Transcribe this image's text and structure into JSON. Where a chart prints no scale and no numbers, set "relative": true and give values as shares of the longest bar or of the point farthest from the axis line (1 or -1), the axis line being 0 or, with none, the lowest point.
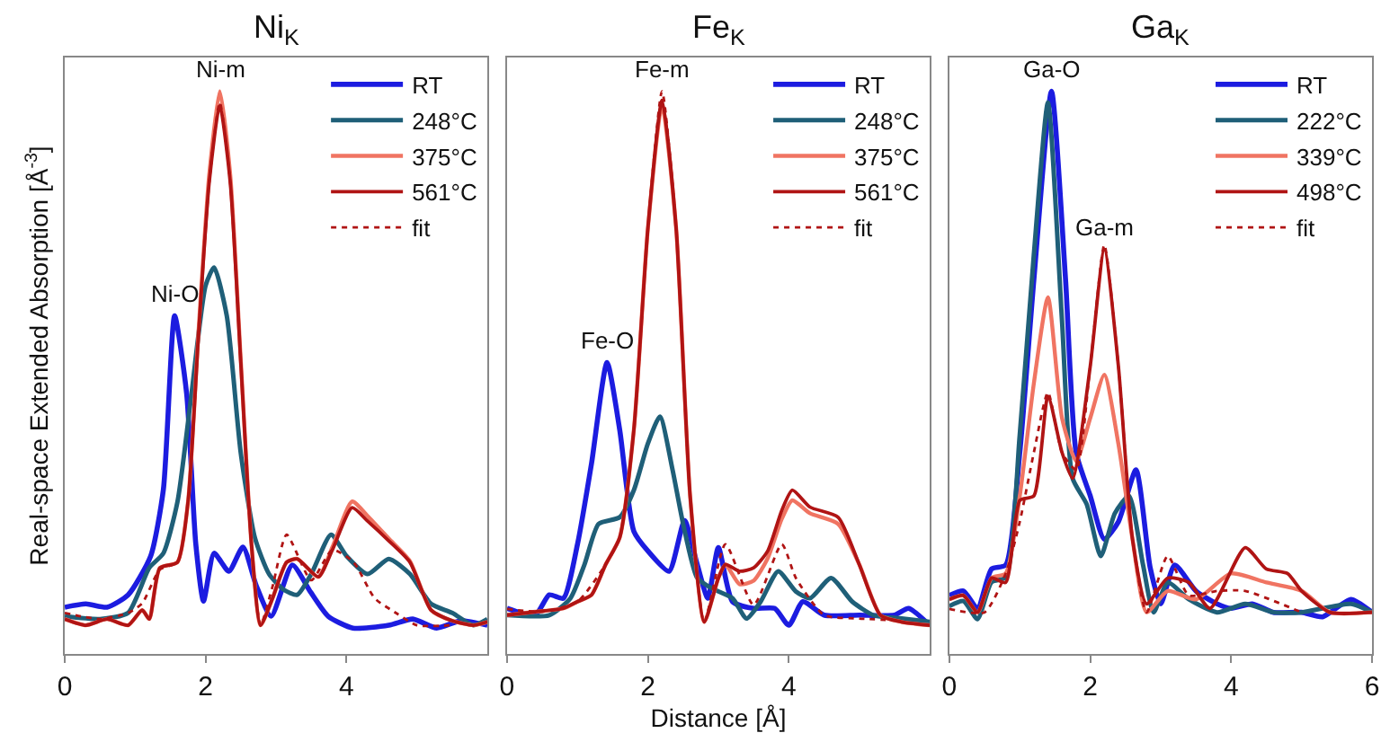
{
  "chart_data": [
    {
      "type": "line",
      "title": "Ni$_{K}$",
      "ylabel": "Real-space Extended Absorption [Å$^{-3}$]",
      "relative": true,
      "xlim": [
        0,
        6
      ],
      "xticks": [
        0,
        2,
        4
      ],
      "legend": "top right",
      "tick_labels": "x",
      "grid": false,
      "annotations": [
        {
          "text": "Ni-O",
          "x": 1.56,
          "y": 0.6
        },
        {
          "text": "Ni-m",
          "x": 2.2,
          "y": 1.0
        }
      ],
      "series": [
        {
          "name": "RT",
          "color": "#1c1ce0",
          "x": [
            0,
            0.3,
            0.6,
            0.9,
            1.22,
            1.4,
            1.56,
            1.73,
            1.86,
            1.97,
            2.12,
            2.33,
            2.53,
            2.72,
            2.93,
            3.23,
            3.49,
            3.74,
            4.09,
            4.6,
            4.94,
            5.28,
            5.62,
            6.0
          ],
          "values": [
            0.083,
            0.089,
            0.083,
            0.105,
            0.174,
            0.292,
            0.601,
            0.463,
            0.196,
            0.094,
            0.179,
            0.147,
            0.19,
            0.121,
            0.067,
            0.158,
            0.11,
            0.067,
            0.046,
            0.051,
            0.062,
            0.046,
            0.059,
            0.051
          ]
        },
        {
          "name": "248°C",
          "color": "#1f5f78",
          "x": [
            0,
            0.5,
            0.9,
            1.2,
            1.4,
            1.6,
            1.8,
            2.0,
            2.12,
            2.3,
            2.5,
            2.7,
            2.9,
            3.1,
            3.3,
            3.5,
            3.78,
            4.0,
            4.3,
            4.6,
            4.9,
            5.2,
            5.5,
            5.8,
            6.0
          ],
          "values": [
            0.067,
            0.062,
            0.073,
            0.153,
            0.179,
            0.27,
            0.463,
            0.655,
            0.687,
            0.601,
            0.356,
            0.206,
            0.142,
            0.115,
            0.105,
            0.142,
            0.212,
            0.174,
            0.142,
            0.169,
            0.142,
            0.089,
            0.073,
            0.051,
            0.062
          ]
        },
        {
          "name": "375°C",
          "color": "#f07462",
          "x": [
            0,
            0.3,
            0.6,
            0.9,
            1.1,
            1.2,
            1.35,
            1.6,
            1.75,
            1.9,
            2.05,
            2.2,
            2.35,
            2.5,
            2.65,
            2.78,
            2.95,
            3.15,
            3.3,
            3.6,
            3.8,
            4.08,
            4.3,
            4.6,
            4.9,
            5.2,
            5.5,
            5.8,
            6.0
          ],
          "values": [
            0.062,
            0.051,
            0.062,
            0.051,
            0.078,
            0.062,
            0.153,
            0.163,
            0.27,
            0.575,
            0.85,
            1.0,
            0.85,
            0.52,
            0.196,
            0.051,
            0.099,
            0.163,
            0.169,
            0.137,
            0.19,
            0.271,
            0.245,
            0.205,
            0.165,
            0.078,
            0.059,
            0.051,
            0.057
          ]
        },
        {
          "name": "561°C",
          "color": "#b01414",
          "x": [
            0,
            0.3,
            0.6,
            0.9,
            1.1,
            1.2,
            1.35,
            1.6,
            1.75,
            1.9,
            2.05,
            2.2,
            2.35,
            2.5,
            2.65,
            2.78,
            2.95,
            3.15,
            3.3,
            3.6,
            3.8,
            4.08,
            4.3,
            4.6,
            4.9,
            5.2,
            5.5,
            5.8,
            6.0
          ],
          "values": [
            0.062,
            0.051,
            0.062,
            0.051,
            0.078,
            0.062,
            0.153,
            0.163,
            0.27,
            0.569,
            0.837,
            0.975,
            0.837,
            0.516,
            0.196,
            0.051,
            0.099,
            0.163,
            0.169,
            0.137,
            0.185,
            0.26,
            0.236,
            0.201,
            0.163,
            0.078,
            0.059,
            0.051,
            0.057
          ]
        },
        {
          "name": "fit",
          "color": "#b01414",
          "line_style": "dotted",
          "x": [
            0,
            0.5,
            0.9,
            1.1,
            1.35,
            1.6,
            1.75,
            1.9,
            2.05,
            2.2,
            2.35,
            2.5,
            2.65,
            2.78,
            2.95,
            3.15,
            3.5,
            3.8,
            4.1,
            4.4,
            4.7,
            5.0,
            5.5
          ],
          "values": [
            0.073,
            0.062,
            0.073,
            0.09,
            0.15,
            0.163,
            0.27,
            0.569,
            0.837,
            0.98,
            0.837,
            0.516,
            0.196,
            0.051,
            0.12,
            0.212,
            0.131,
            0.185,
            0.163,
            0.099,
            0.073,
            0.051,
            0.051
          ]
        }
      ]
    },
    {
      "type": "line",
      "title": "Fe$_{K}$",
      "xlabel": "Distance [Å]",
      "relative": true,
      "xlim": [
        0,
        6
      ],
      "xticks": [
        0,
        2,
        4
      ],
      "legend": "top right",
      "tick_labels": "x",
      "grid": false,
      "annotations": [
        {
          "text": "Fe-O",
          "x": 1.42,
          "y": 0.518
        },
        {
          "text": "Fe-m",
          "x": 2.2,
          "y": 1.0
        }
      ],
      "series": [
        {
          "name": "RT",
          "color": "#1c1ce0",
          "x": [
            0,
            0.4,
            0.6,
            0.8,
            1.0,
            1.2,
            1.42,
            1.6,
            1.8,
            2.0,
            2.3,
            2.52,
            2.7,
            2.85,
            3.0,
            3.2,
            3.5,
            3.8,
            4.0,
            4.2,
            4.5,
            5.0,
            5.5,
            5.7,
            6.0
          ],
          "values": [
            0.081,
            0.069,
            0.105,
            0.099,
            0.195,
            0.339,
            0.518,
            0.398,
            0.218,
            0.183,
            0.147,
            0.237,
            0.159,
            0.099,
            0.189,
            0.093,
            0.081,
            0.081,
            0.051,
            0.093,
            0.069,
            0.069,
            0.069,
            0.081,
            0.051
          ]
        },
        {
          "name": "248°C",
          "color": "#1f5f78",
          "x": [
            0,
            0.6,
            0.9,
            1.1,
            1.3,
            1.6,
            1.8,
            2.0,
            2.17,
            2.35,
            2.5,
            2.7,
            2.9,
            3.2,
            3.4,
            3.6,
            3.85,
            4.1,
            4.3,
            4.6,
            4.9,
            5.2,
            5.6,
            6.0
          ],
          "values": [
            0.069,
            0.069,
            0.099,
            0.159,
            0.231,
            0.243,
            0.291,
            0.374,
            0.422,
            0.327,
            0.231,
            0.135,
            0.117,
            0.099,
            0.063,
            0.093,
            0.147,
            0.111,
            0.099,
            0.135,
            0.093,
            0.069,
            0.063,
            0.057
          ]
        },
        {
          "name": "375°C",
          "color": "#f07462",
          "x": [
            0,
            0.4,
            0.8,
            1.0,
            1.2,
            1.4,
            1.6,
            1.8,
            2.0,
            2.2,
            2.4,
            2.6,
            2.8,
            3.0,
            3.1,
            3.3,
            3.5,
            3.7,
            3.9,
            4.05,
            4.3,
            4.7,
            5.0,
            5.3,
            5.6,
            6.0
          ],
          "values": [
            0.069,
            0.075,
            0.081,
            0.093,
            0.105,
            0.159,
            0.207,
            0.398,
            0.757,
            0.975,
            0.757,
            0.279,
            0.057,
            0.135,
            0.159,
            0.124,
            0.13,
            0.17,
            0.24,
            0.273,
            0.25,
            0.231,
            0.159,
            0.069,
            0.057,
            0.051
          ]
        },
        {
          "name": "561°C",
          "color": "#b01414",
          "x": [
            0,
            0.4,
            0.8,
            1.0,
            1.2,
            1.4,
            1.6,
            1.8,
            2.0,
            2.2,
            2.4,
            2.6,
            2.8,
            3.0,
            3.1,
            3.3,
            3.5,
            3.7,
            3.9,
            4.05,
            4.3,
            4.7,
            5.0,
            5.3,
            5.6,
            6.0
          ],
          "values": [
            0.069,
            0.075,
            0.081,
            0.093,
            0.105,
            0.159,
            0.207,
            0.398,
            0.757,
            0.984,
            0.757,
            0.279,
            0.057,
            0.135,
            0.159,
            0.147,
            0.153,
            0.183,
            0.255,
            0.291,
            0.261,
            0.243,
            0.159,
            0.069,
            0.057,
            0.051
          ]
        },
        {
          "name": "fit",
          "color": "#b01414",
          "line_style": "dotted",
          "x": [
            0,
            0.5,
            1.0,
            1.4,
            1.6,
            1.8,
            2.0,
            2.2,
            2.4,
            2.6,
            2.8,
            3.1,
            3.5,
            3.9,
            4.1,
            4.5,
            5.0,
            5.5
          ],
          "values": [
            0.08,
            0.075,
            0.093,
            0.159,
            0.207,
            0.398,
            0.757,
            1.0,
            0.757,
            0.279,
            0.057,
            0.195,
            0.087,
            0.195,
            0.135,
            0.069,
            0.063,
            0.06
          ]
        }
      ]
    },
    {
      "type": "line",
      "title": "Ga$_{K}$",
      "relative": true,
      "xlim": [
        0,
        6
      ],
      "xticks": [
        0,
        2,
        4,
        6
      ],
      "legend": "top right",
      "tick_labels": "x",
      "grid": false,
      "annotations": [
        {
          "text": "Ga-O",
          "x": 1.45,
          "y": 1.0
        },
        {
          "text": "Ga-m",
          "x": 2.2,
          "y": 0.719
        }
      ],
      "series": [
        {
          "name": "RT",
          "color": "#1c1ce0",
          "x": [
            0,
            0.2,
            0.4,
            0.6,
            0.8,
            1.0,
            1.2,
            1.45,
            1.65,
            1.8,
            2.0,
            2.2,
            2.4,
            2.65,
            2.85,
            3.0,
            3.2,
            3.5,
            3.8,
            4.0,
            4.3,
            4.6,
            5.0,
            5.3,
            5.7,
            6.0
          ],
          "values": [
            0.104,
            0.112,
            0.081,
            0.151,
            0.158,
            0.358,
            0.665,
            1.0,
            0.665,
            0.358,
            0.281,
            0.204,
            0.235,
            0.327,
            0.154,
            0.089,
            0.158,
            0.112,
            0.089,
            0.081,
            0.089,
            0.074,
            0.074,
            0.066,
            0.097,
            0.074
          ]
        },
        {
          "name": "222°C",
          "color": "#1f5f78",
          "x": [
            0,
            0.2,
            0.4,
            0.6,
            0.8,
            1.0,
            1.2,
            1.4,
            1.6,
            1.75,
            1.95,
            2.15,
            2.35,
            2.55,
            2.75,
            2.9,
            3.1,
            3.4,
            3.8,
            4.2,
            4.6,
            5.0,
            5.7,
            6.0
          ],
          "values": [
            0.085,
            0.094,
            0.062,
            0.128,
            0.136,
            0.39,
            0.71,
            0.98,
            0.591,
            0.312,
            0.266,
            0.174,
            0.25,
            0.281,
            0.158,
            0.074,
            0.127,
            0.097,
            0.074,
            0.089,
            0.074,
            0.074,
            0.089,
            0.074
          ]
        },
        {
          "name": "339°C",
          "color": "#f07462",
          "x": [
            0,
            0.2,
            0.4,
            0.6,
            0.8,
            1.0,
            1.2,
            1.4,
            1.6,
            1.8,
            2.0,
            2.2,
            2.4,
            2.6,
            2.8,
            3.1,
            3.5,
            4.0,
            4.5,
            5.0,
            5.4,
            6.0
          ],
          "values": [
            0.097,
            0.104,
            0.074,
            0.135,
            0.143,
            0.281,
            0.481,
            0.634,
            0.419,
            0.343,
            0.419,
            0.496,
            0.373,
            0.204,
            0.074,
            0.112,
            0.097,
            0.143,
            0.127,
            0.112,
            0.074,
            0.074
          ]
        },
        {
          "name": "498°C",
          "color": "#b01414",
          "x": [
            0,
            0.2,
            0.4,
            0.6,
            0.8,
            1.0,
            1.2,
            1.4,
            1.6,
            1.75,
            2.0,
            2.2,
            2.4,
            2.6,
            2.8,
            3.1,
            3.4,
            3.7,
            4.2,
            4.5,
            4.8,
            5.0,
            5.4,
            6.0
          ],
          "values": [
            0.097,
            0.104,
            0.074,
            0.135,
            0.127,
            0.273,
            0.281,
            0.458,
            0.358,
            0.312,
            0.511,
            0.719,
            0.511,
            0.204,
            0.089,
            0.135,
            0.127,
            0.081,
            0.189,
            0.151,
            0.143,
            0.112,
            0.074,
            0.074
          ]
        },
        {
          "name": "fit",
          "color": "#b01414",
          "line_style": "dotted",
          "x": [
            0,
            0.5,
            0.8,
            1.0,
            1.2,
            1.4,
            1.6,
            1.8,
            2.0,
            2.2,
            2.4,
            2.6,
            2.8,
            3.1,
            3.4,
            3.8,
            4.2,
            5.0
          ],
          "values": [
            0.08,
            0.074,
            0.143,
            0.235,
            0.358,
            0.465,
            0.358,
            0.327,
            0.511,
            0.727,
            0.511,
            0.204,
            0.074,
            0.174,
            0.104,
            0.112,
            0.112,
            0.074
          ]
        }
      ]
    }
  ]
}
